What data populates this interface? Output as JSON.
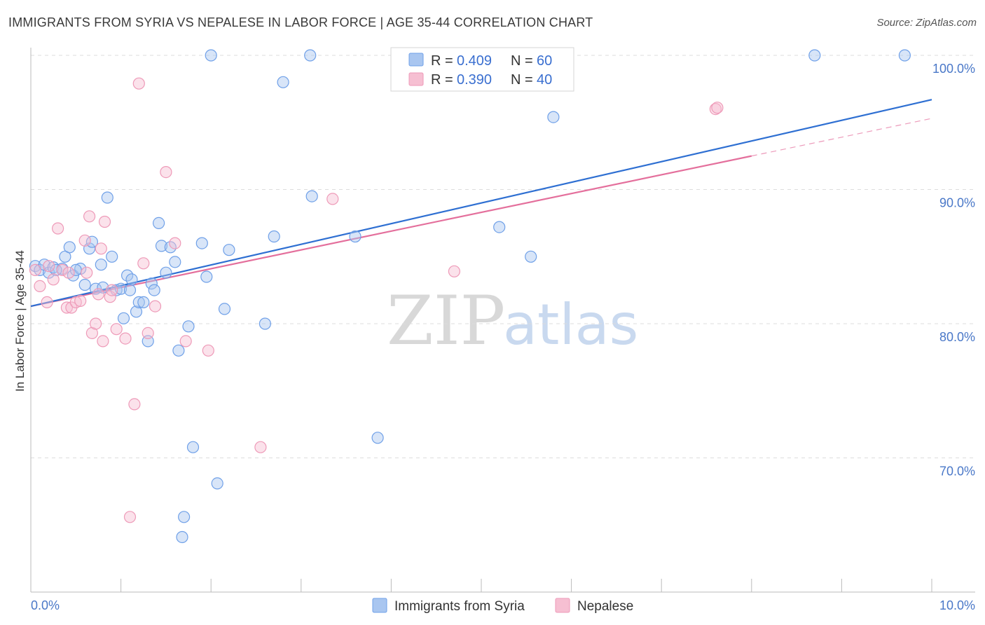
{
  "title": "IMMIGRANTS FROM SYRIA VS NEPALESE IN LABOR FORCE | AGE 35-44 CORRELATION CHART",
  "source": "Source: ZipAtlas.com",
  "colors": {
    "syria": "#6fa0e8",
    "syria_fill": "#a9c6f0",
    "syria_line": "#2e6fd2",
    "nepal": "#ee9ab8",
    "nepal_fill": "#f6bfd2",
    "nepal_line": "#e46f9c",
    "tick": "#4a78c8",
    "grid": "#dcdcdc"
  },
  "watermark": {
    "zip": "ZIP",
    "atlas": "atlas"
  },
  "legend": {
    "r_label": "R = ",
    "n_label": "N = ",
    "series": [
      {
        "r": "0.409",
        "n": "60"
      },
      {
        "r": "0.390",
        "n": "40"
      }
    ]
  },
  "chart_data": {
    "type": "scatter",
    "title": "IMMIGRANTS FROM SYRIA VS NEPALESE IN LABOR FORCE | AGE 35-44 CORRELATION CHART",
    "xlabel": "",
    "ylabel": "In Labor Force | Age 35-44",
    "xlim": [
      0,
      10
    ],
    "ylim": [
      60,
      101
    ],
    "x_tick_labels": [
      {
        "value": 0,
        "label": "0.0%"
      },
      {
        "value": 10,
        "label": "10.0%"
      }
    ],
    "y_tick_labels": [
      {
        "value": 100,
        "label": "100.0%"
      },
      {
        "value": 90,
        "label": "90.0%"
      },
      {
        "value": 80,
        "label": "80.0%"
      },
      {
        "value": 70,
        "label": "70.0%"
      }
    ],
    "series": [
      {
        "name": "Immigrants from Syria",
        "r": 0.409,
        "n": 60,
        "trend": {
          "x": [
            0,
            10
          ],
          "y": [
            81.3,
            96.7
          ]
        },
        "points": [
          [
            0.05,
            84.3
          ],
          [
            0.1,
            84.0
          ],
          [
            0.15,
            84.4
          ],
          [
            0.2,
            83.8
          ],
          [
            0.25,
            84.2
          ],
          [
            0.35,
            84.1
          ],
          [
            0.38,
            85.0
          ],
          [
            0.43,
            85.7
          ],
          [
            0.47,
            83.6
          ],
          [
            0.55,
            84.1
          ],
          [
            0.6,
            82.9
          ],
          [
            0.65,
            85.6
          ],
          [
            0.68,
            86.1
          ],
          [
            0.72,
            82.6
          ],
          [
            0.78,
            84.4
          ],
          [
            0.8,
            82.7
          ],
          [
            0.85,
            89.4
          ],
          [
            0.9,
            85.0
          ],
          [
            0.95,
            82.5
          ],
          [
            1.0,
            82.6
          ],
          [
            1.03,
            80.4
          ],
          [
            1.07,
            83.6
          ],
          [
            1.12,
            83.3
          ],
          [
            1.17,
            80.9
          ],
          [
            1.2,
            81.6
          ],
          [
            1.25,
            81.6
          ],
          [
            1.3,
            78.7
          ],
          [
            1.34,
            83.0
          ],
          [
            1.37,
            82.5
          ],
          [
            1.42,
            87.5
          ],
          [
            1.45,
            85.8
          ],
          [
            1.5,
            83.8
          ],
          [
            1.55,
            85.7
          ],
          [
            1.6,
            84.6
          ],
          [
            1.64,
            78.0
          ],
          [
            1.7,
            65.6
          ],
          [
            1.75,
            79.8
          ],
          [
            1.8,
            70.8
          ],
          [
            1.9,
            86.0
          ],
          [
            1.95,
            83.5
          ],
          [
            2.0,
            100.0
          ],
          [
            2.07,
            68.1
          ],
          [
            2.15,
            81.1
          ],
          [
            2.2,
            85.5
          ],
          [
            2.6,
            80.0
          ],
          [
            2.7,
            86.5
          ],
          [
            2.8,
            98.0
          ],
          [
            3.1,
            100.0
          ],
          [
            3.12,
            89.5
          ],
          [
            3.6,
            86.5
          ],
          [
            3.85,
            71.5
          ],
          [
            5.2,
            87.2
          ],
          [
            5.55,
            85.0
          ],
          [
            5.8,
            95.4
          ],
          [
            8.7,
            100.0
          ],
          [
            9.7,
            100.0
          ],
          [
            1.68,
            64.1
          ],
          [
            0.28,
            84.0
          ],
          [
            0.5,
            84.0
          ],
          [
            1.1,
            82.5
          ]
        ]
      },
      {
        "name": "Nepalese",
        "r": 0.39,
        "n": 40,
        "trend": {
          "x": [
            0,
            8.0
          ],
          "y": [
            81.3,
            92.5
          ]
        },
        "trend_dashed": {
          "x": [
            8.0,
            10
          ],
          "y": [
            92.5,
            95.3
          ]
        },
        "points": [
          [
            0.05,
            84.0
          ],
          [
            0.1,
            82.8
          ],
          [
            0.18,
            81.6
          ],
          [
            0.25,
            83.3
          ],
          [
            0.3,
            87.1
          ],
          [
            0.35,
            84.0
          ],
          [
            0.4,
            81.2
          ],
          [
            0.45,
            81.2
          ],
          [
            0.5,
            81.6
          ],
          [
            0.55,
            81.7
          ],
          [
            0.6,
            86.2
          ],
          [
            0.65,
            88.0
          ],
          [
            0.68,
            79.3
          ],
          [
            0.72,
            80.0
          ],
          [
            0.75,
            82.2
          ],
          [
            0.78,
            85.6
          ],
          [
            0.8,
            78.7
          ],
          [
            0.82,
            87.6
          ],
          [
            0.88,
            82.0
          ],
          [
            0.95,
            79.6
          ],
          [
            1.05,
            78.9
          ],
          [
            1.15,
            74.0
          ],
          [
            1.2,
            97.9
          ],
          [
            1.25,
            84.5
          ],
          [
            1.3,
            79.3
          ],
          [
            1.38,
            81.3
          ],
          [
            1.5,
            91.3
          ],
          [
            1.6,
            86.0
          ],
          [
            1.72,
            78.7
          ],
          [
            1.97,
            78.0
          ],
          [
            2.55,
            70.8
          ],
          [
            3.35,
            89.3
          ],
          [
            4.7,
            83.9
          ],
          [
            7.6,
            96.0
          ],
          [
            1.1,
            65.6
          ],
          [
            0.2,
            84.3
          ],
          [
            0.42,
            83.8
          ],
          [
            0.62,
            83.8
          ],
          [
            0.9,
            82.5
          ],
          [
            7.62,
            96.1
          ]
        ]
      }
    ],
    "legend": [
      "Immigrants from Syria",
      "Nepalese"
    ]
  }
}
